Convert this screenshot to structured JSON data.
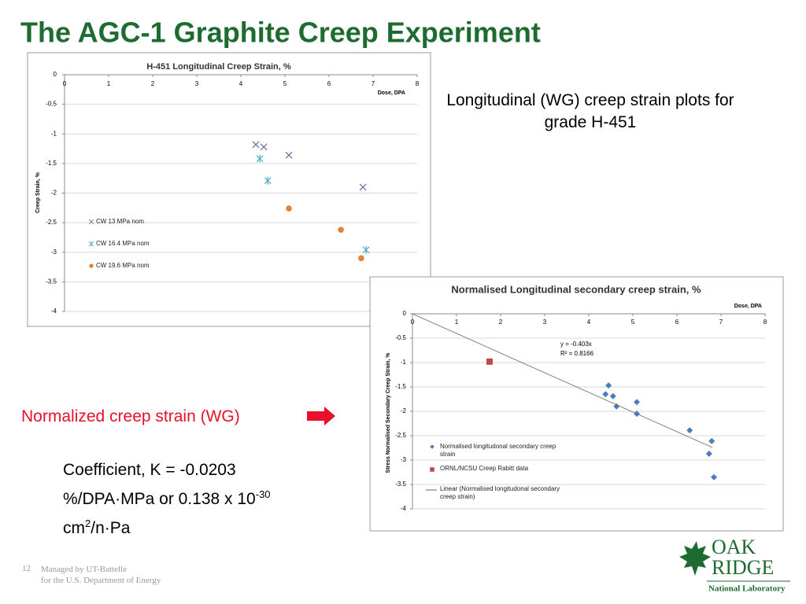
{
  "slide": {
    "title": "The AGC-1 Graphite Creep Experiment",
    "subtitle": "Longitudinal (WG) creep strain plots for grade H-451",
    "callout": "Normalized creep strain (WG)",
    "coefficient": {
      "line1": "Coefficient, K = -0.0203",
      "line2": "%/DPA·MPa or 0.138 x 10",
      "exp1": "-30",
      "line3a": "cm",
      "exp2": "2",
      "line3b": "/n·Pa"
    },
    "footer": {
      "page": "12",
      "line1": "Managed by UT-Battelle",
      "line2": "for the U.S. Department of Energy"
    },
    "logo": {
      "word1": "OAK",
      "word2": "RIDGE",
      "word3": "National Laboratory"
    }
  },
  "chart_data": [
    {
      "type": "scatter",
      "title": "H-451 Longitudinal Creep Strain, %",
      "x_label": "Dose, DPA",
      "y_label": "Creep  Strain, %",
      "xlim": [
        0,
        8
      ],
      "xticks": [
        0,
        1,
        2,
        3,
        4,
        5,
        6,
        7,
        8
      ],
      "ylim": [
        -4,
        0
      ],
      "yticks": [
        0,
        -0.5,
        -1,
        -1.5,
        -2,
        -2.5,
        -3,
        -3.5,
        -4
      ],
      "grid": true,
      "series": [
        {
          "name": "CW 13 MPa nom",
          "color": "#6a6aa8",
          "marker": "x",
          "x": [
            4.34,
            4.52,
            5.09,
            6.77
          ],
          "values": [
            -1.18,
            -1.22,
            -1.36,
            -1.9
          ]
        },
        {
          "name": "CW 16.4 MPa nom",
          "color": "#4bacc6",
          "marker": "star",
          "x": [
            4.43,
            4.61,
            6.84
          ],
          "values": [
            -1.42,
            -1.79,
            -2.96
          ]
        },
        {
          "name": "CW 19.6 MPa nom",
          "color": "#e0823a",
          "marker": "circle",
          "x": [
            5.09,
            6.27,
            6.73
          ],
          "values": [
            -2.26,
            -2.62,
            -3.1
          ]
        }
      ]
    },
    {
      "type": "scatter",
      "title": "Normalised Longitudinal secondary creep strain, %",
      "x_label": "Dose, DPA",
      "y_label": "Stress Normalised Secondary Creep  Strain, %",
      "xlim": [
        0,
        8
      ],
      "xticks": [
        0,
        1,
        2,
        3,
        4,
        5,
        6,
        7,
        8
      ],
      "ylim": [
        -4,
        0
      ],
      "yticks": [
        0,
        -0.5,
        -1,
        -1.5,
        -2,
        -2.5,
        -3,
        -3.5,
        -4
      ],
      "grid": true,
      "annotations": [
        "y = -0.403x",
        "R² = 0.8166"
      ],
      "series": [
        {
          "name": "Normalised longitudonal secondary creep strain",
          "color": "#4a7ebb",
          "marker": "diamond",
          "x": [
            4.38,
            4.45,
            4.55,
            4.63,
            5.09,
            5.09,
            6.29,
            6.79,
            6.73,
            6.84
          ],
          "values": [
            -1.65,
            -1.47,
            -1.69,
            -1.9,
            -1.81,
            -2.05,
            -2.39,
            -2.61,
            -2.87,
            -3.35
          ]
        },
        {
          "name": "ORNL/NCSU Creep Rabitt data",
          "color": "#be4b48",
          "marker": "square",
          "x": [
            1.75
          ],
          "values": [
            -0.98
          ]
        },
        {
          "name": "Linear (Normalised longitudonal secondary creep strain)",
          "color": "#666666",
          "marker": "line",
          "x": [
            0,
            6.8
          ],
          "values": [
            0,
            -2.74
          ]
        }
      ]
    }
  ]
}
